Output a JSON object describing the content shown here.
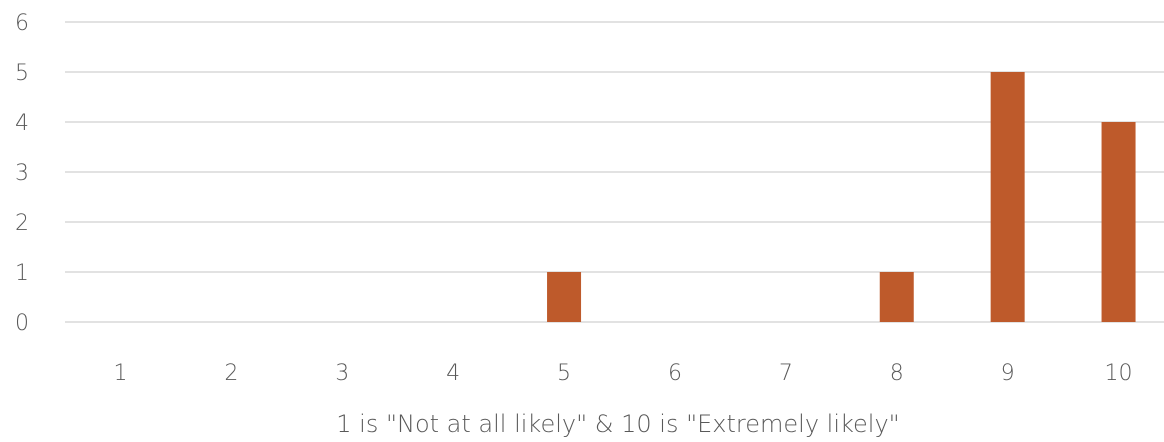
{
  "chart_data": {
    "type": "bar",
    "title": "",
    "xlabel": "1 is \"Not at all likely\" & 10 is \"Extremely likely\"",
    "ylabel": "",
    "categories": [
      "1",
      "2",
      "3",
      "4",
      "5",
      "6",
      "7",
      "8",
      "9",
      "10"
    ],
    "values": [
      0,
      0,
      0,
      0,
      1,
      0,
      0,
      1,
      5,
      4
    ],
    "ylim": [
      0,
      6
    ],
    "yticks": [
      "0",
      "1",
      "2",
      "3",
      "4",
      "5",
      "6"
    ],
    "grid": true,
    "legend": "none",
    "bar_color": "#BE5A2B",
    "grid_color": "#D9D9D9",
    "text_color": "#595959"
  }
}
